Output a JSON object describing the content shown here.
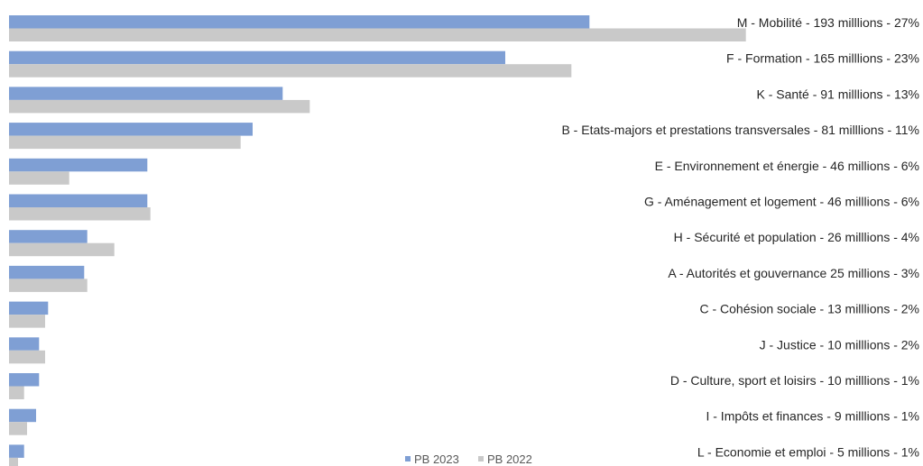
{
  "chart_data": {
    "type": "bar",
    "orientation": "horizontal",
    "categories": [
      "M - Mobilité - 193 milllions - 27%",
      "F - Formation - 165 milllions - 23%",
      "K - Santé - 91 milllions - 13%",
      "B - Etats-majors et prestations transversales - 81 milllions - 11%",
      "E - Environnement et énergie - 46 millions - 6%",
      "G - Aménagement et logement - 46 milllions - 6%",
      "H - Sécurité et population - 26 milllions - 4%",
      "A - Autorités et gouvernance  25 millions - 3%",
      "C - Cohésion sociale - 13 milllions - 2%",
      "J - Justice - 10 milllions - 2%",
      "D - Culture, sport et loisirs - 10 milllions - 1%",
      "I - Impôts et finances - 9 milllions - 1%",
      "L - Economie et emploi - 5 millions - 1%"
    ],
    "series": [
      {
        "name": "PB 2023",
        "color": "#7f9fd4",
        "values": [
          193,
          165,
          91,
          81,
          46,
          46,
          26,
          25,
          13,
          10,
          10,
          9,
          5
        ]
      },
      {
        "name": "PB 2022",
        "color": "#c9c9c9",
        "values": [
          245,
          187,
          100,
          77,
          20,
          47,
          35,
          26,
          12,
          12,
          5,
          6,
          3
        ]
      }
    ],
    "xlim": [
      0,
      300
    ],
    "grid": false,
    "legend_position": "bottom"
  }
}
